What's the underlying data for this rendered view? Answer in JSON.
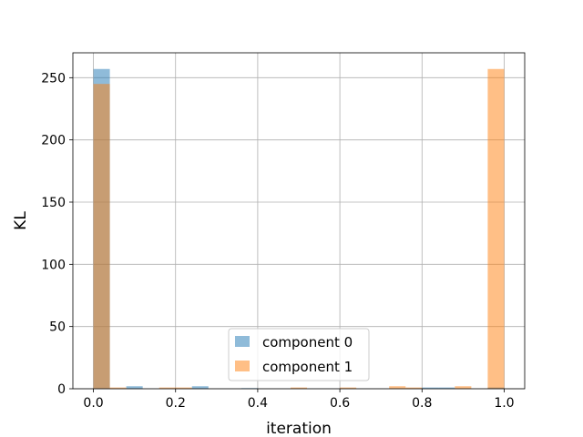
{
  "chart_data": {
    "type": "bar",
    "xlabel": "iteration",
    "ylabel": "KL",
    "xlim": [
      -0.05,
      1.05
    ],
    "ylim": [
      0,
      270
    ],
    "xticks": [
      "0.0",
      "0.2",
      "0.4",
      "0.6",
      "0.8",
      "1.0"
    ],
    "yticks": [
      "0",
      "50",
      "100",
      "150",
      "200",
      "250"
    ],
    "grid": true,
    "legend_position": "bottom-center",
    "bin_edges": [
      0.0,
      0.04,
      0.08,
      0.12,
      0.16,
      0.2,
      0.24,
      0.28,
      0.32,
      0.36,
      0.4,
      0.44,
      0.48,
      0.52,
      0.56,
      0.6,
      0.64,
      0.68,
      0.72,
      0.76,
      0.8,
      0.84,
      0.88,
      0.92,
      0.96,
      1.0
    ],
    "series": [
      {
        "name": "component 0",
        "color": "#1f77b4",
        "alpha": 0.5,
        "values": [
          257,
          0,
          2,
          0,
          0,
          0,
          2,
          0,
          0,
          0.5,
          0,
          0,
          0,
          0,
          0,
          0,
          0,
          0,
          0,
          0,
          1,
          1,
          0,
          0,
          1
        ]
      },
      {
        "name": "component 1",
        "color": "#ff7f0e",
        "alpha": 0.5,
        "values": [
          245,
          1,
          0,
          0,
          1,
          1,
          0,
          0,
          0,
          0,
          0,
          0,
          1,
          0,
          0,
          1,
          0,
          0,
          2,
          1,
          0,
          0,
          2,
          0,
          257
        ]
      }
    ]
  }
}
